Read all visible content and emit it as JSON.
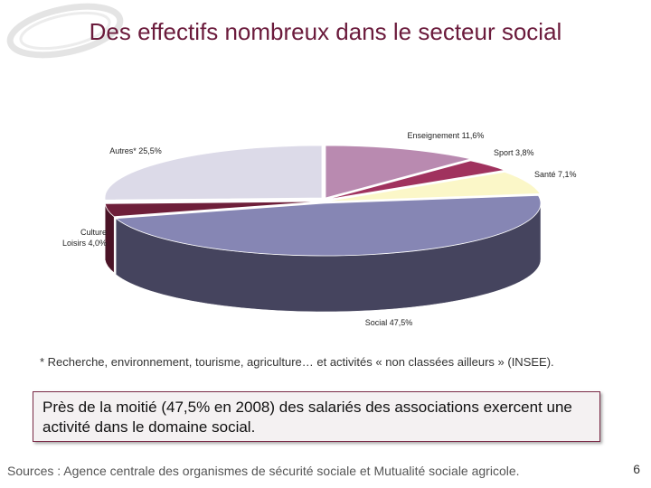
{
  "slide": {
    "title": "Des effectifs nombreux dans le secteur social",
    "footnote": "* Recherche, environnement, tourisme, agriculture… et activités « non classées ailleurs » (INSEE).",
    "callout": "Près de la moitié (47,5% en 2008) des salariés des associations exercent une activité dans le domaine social.",
    "sources": "Sources : Agence centrale des organismes de sécurité sociale et Mutualité sociale agricole.",
    "page_number": "6"
  },
  "chart_data": {
    "type": "pie",
    "title": "",
    "slices": [
      {
        "name": "Enseignement",
        "value": 11.6,
        "label": "Enseignement 11,6%",
        "color": "#b98ab0",
        "side_color": "#7d5a76"
      },
      {
        "name": "Sport",
        "value": 3.8,
        "label": "Sport 3,8%",
        "color": "#a0325e",
        "side_color": "#6b1f3e"
      },
      {
        "name": "Santé",
        "value": 7.1,
        "label": "Santé 7,1%",
        "color": "#fbf7c8",
        "side_color": "#bdb98f"
      },
      {
        "name": "Social",
        "value": 47.5,
        "label": "Social 47,5%",
        "color": "#8686b4",
        "side_color": "#45445e"
      },
      {
        "name": "Culture Loisirs",
        "value": 4.0,
        "label_lines": [
          "Culture",
          "Loisirs 4,0%"
        ],
        "color": "#6e1f3a",
        "side_color": "#4a1326"
      },
      {
        "name": "Autres",
        "value": 25.5,
        "label": "Autres* 25,5%",
        "color": "#dcdae8",
        "side_color": "#a4a2b4"
      }
    ]
  }
}
